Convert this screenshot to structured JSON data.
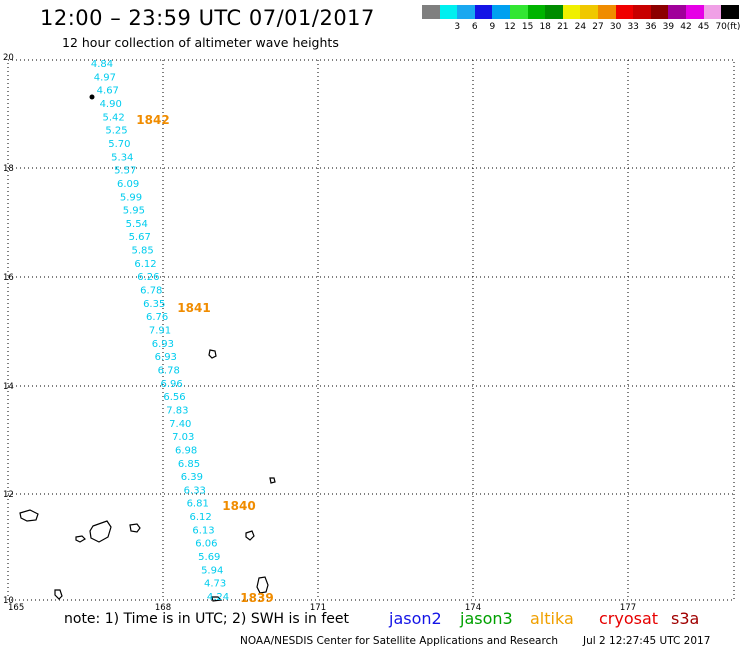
{
  "title": "12:00 – 23:59 UTC 07/01/2017",
  "subtitle": "12 hour collection of altimeter wave heights",
  "legend": {
    "units": "(ft)",
    "items": [
      {
        "label": "",
        "color": "#7f7f7f"
      },
      {
        "label": "3",
        "color": "#00f0f0"
      },
      {
        "label": "6",
        "color": "#1aa8f0"
      },
      {
        "label": "9",
        "color": "#1414e6"
      },
      {
        "label": "12",
        "color": "#00a0f0"
      },
      {
        "label": "15",
        "color": "#32e632"
      },
      {
        "label": "18",
        "color": "#00b400"
      },
      {
        "label": "21",
        "color": "#008c00"
      },
      {
        "label": "24",
        "color": "#f0f000"
      },
      {
        "label": "27",
        "color": "#f0c800"
      },
      {
        "label": "30",
        "color": "#f08c00"
      },
      {
        "label": "33",
        "color": "#f00000"
      },
      {
        "label": "36",
        "color": "#c80000"
      },
      {
        "label": "39",
        "color": "#8c0000"
      },
      {
        "label": "42",
        "color": "#a0009a"
      },
      {
        "label": "45",
        "color": "#e600e6"
      },
      {
        "label": "70",
        "color": "#f0a0e6"
      },
      {
        "label": "",
        "color": "#000000"
      }
    ]
  },
  "map": {
    "lat_ticks": [
      "20",
      "18",
      "16",
      "14",
      "12",
      "10"
    ],
    "lon_ticks": [
      "165",
      "168",
      "171",
      "174",
      "177"
    ],
    "lat_range": [
      10,
      20
    ],
    "lon_range": [
      165,
      179
    ],
    "track_color": "#00ccee",
    "time_color": "#f08c00",
    "wave_heights": [
      "4.84",
      "4.97",
      "4.67",
      "4.90",
      "5.42",
      "5.25",
      "5.70",
      "5.34",
      "5.57",
      "6.09",
      "5.99",
      "5.95",
      "5.54",
      "5.67",
      "5.85",
      "6.12",
      "6.26",
      "6.78",
      "6.35",
      "6.76",
      "7.91",
      "6.93",
      "6.93",
      "6.78",
      "6.96",
      "6.56",
      "7.83",
      "7.40",
      "7.03",
      "6.98",
      "6.85",
      "6.39",
      "6.33",
      "6.81",
      "6.12",
      "6.13",
      "6.06",
      "5.69",
      "5.94",
      "4.73",
      "4.24"
    ],
    "time_labels": [
      "1842",
      "1841",
      "1840",
      "1839"
    ]
  },
  "footer": {
    "note": "note: 1) Time is in UTC; 2) SWH is in feet",
    "satellites": [
      {
        "name": "jason2",
        "color": "#1414e6"
      },
      {
        "name": "jason3",
        "color": "#00a000"
      },
      {
        "name": "altika",
        "color": "#f0a000"
      },
      {
        "name": "cryosat",
        "color": "#e60000"
      },
      {
        "name": "s3a",
        "color": "#a00000"
      }
    ],
    "credit": "NOAA/NESDIS Center for Satellite Applications and Research",
    "timestamp": "Jul  2 12:27:45 UTC 2017"
  }
}
